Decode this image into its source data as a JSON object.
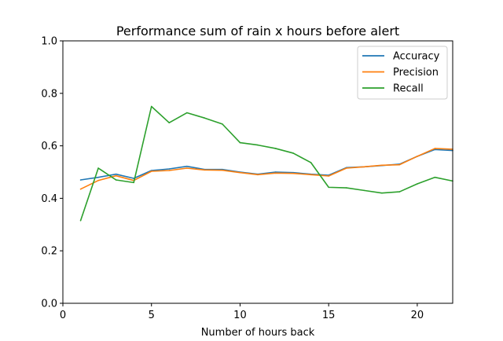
{
  "chart_data": {
    "type": "line",
    "title": "Performance sum of rain x hours before alert",
    "xlabel": "Number of hours back",
    "ylabel": "",
    "xlim": [
      0,
      22
    ],
    "ylim": [
      0,
      1.0
    ],
    "x_ticks": [
      0,
      5,
      10,
      15,
      20
    ],
    "x_tick_labels": [
      "0",
      "5",
      "10",
      "15",
      "20"
    ],
    "y_ticks": [
      0,
      0.2,
      0.4,
      0.6,
      0.8,
      1.0
    ],
    "y_tick_labels": [
      "0.0",
      "0.2",
      "0.4",
      "0.6",
      "0.8",
      "1.0"
    ],
    "grid": false,
    "legend_position": "top-right",
    "x": [
      1,
      2,
      3,
      4,
      5,
      6,
      7,
      8,
      9,
      10,
      11,
      12,
      13,
      14,
      15,
      16,
      17,
      18,
      19,
      20,
      21,
      22
    ],
    "series": [
      {
        "name": "Accuracy",
        "color": "#1f77b4",
        "values": [
          0.47,
          0.48,
          0.492,
          0.476,
          0.506,
          0.512,
          0.522,
          0.51,
          0.51,
          0.5,
          0.492,
          0.5,
          0.498,
          0.492,
          0.488,
          0.517,
          0.52,
          0.525,
          0.53,
          0.56,
          0.586,
          0.582
        ]
      },
      {
        "name": "Precision",
        "color": "#ff7f0e",
        "values": [
          0.435,
          0.468,
          0.486,
          0.468,
          0.503,
          0.506,
          0.515,
          0.508,
          0.507,
          0.498,
          0.49,
          0.496,
          0.495,
          0.49,
          0.485,
          0.515,
          0.52,
          0.526,
          0.528,
          0.56,
          0.59,
          0.587
        ]
      },
      {
        "name": "Recall",
        "color": "#2ca02c",
        "values": [
          0.315,
          0.515,
          0.47,
          0.46,
          0.75,
          0.688,
          0.726,
          0.706,
          0.683,
          0.612,
          0.603,
          0.59,
          0.572,
          0.536,
          0.442,
          0.44,
          0.43,
          0.42,
          0.425,
          0.455,
          0.48,
          0.466
        ]
      }
    ]
  }
}
